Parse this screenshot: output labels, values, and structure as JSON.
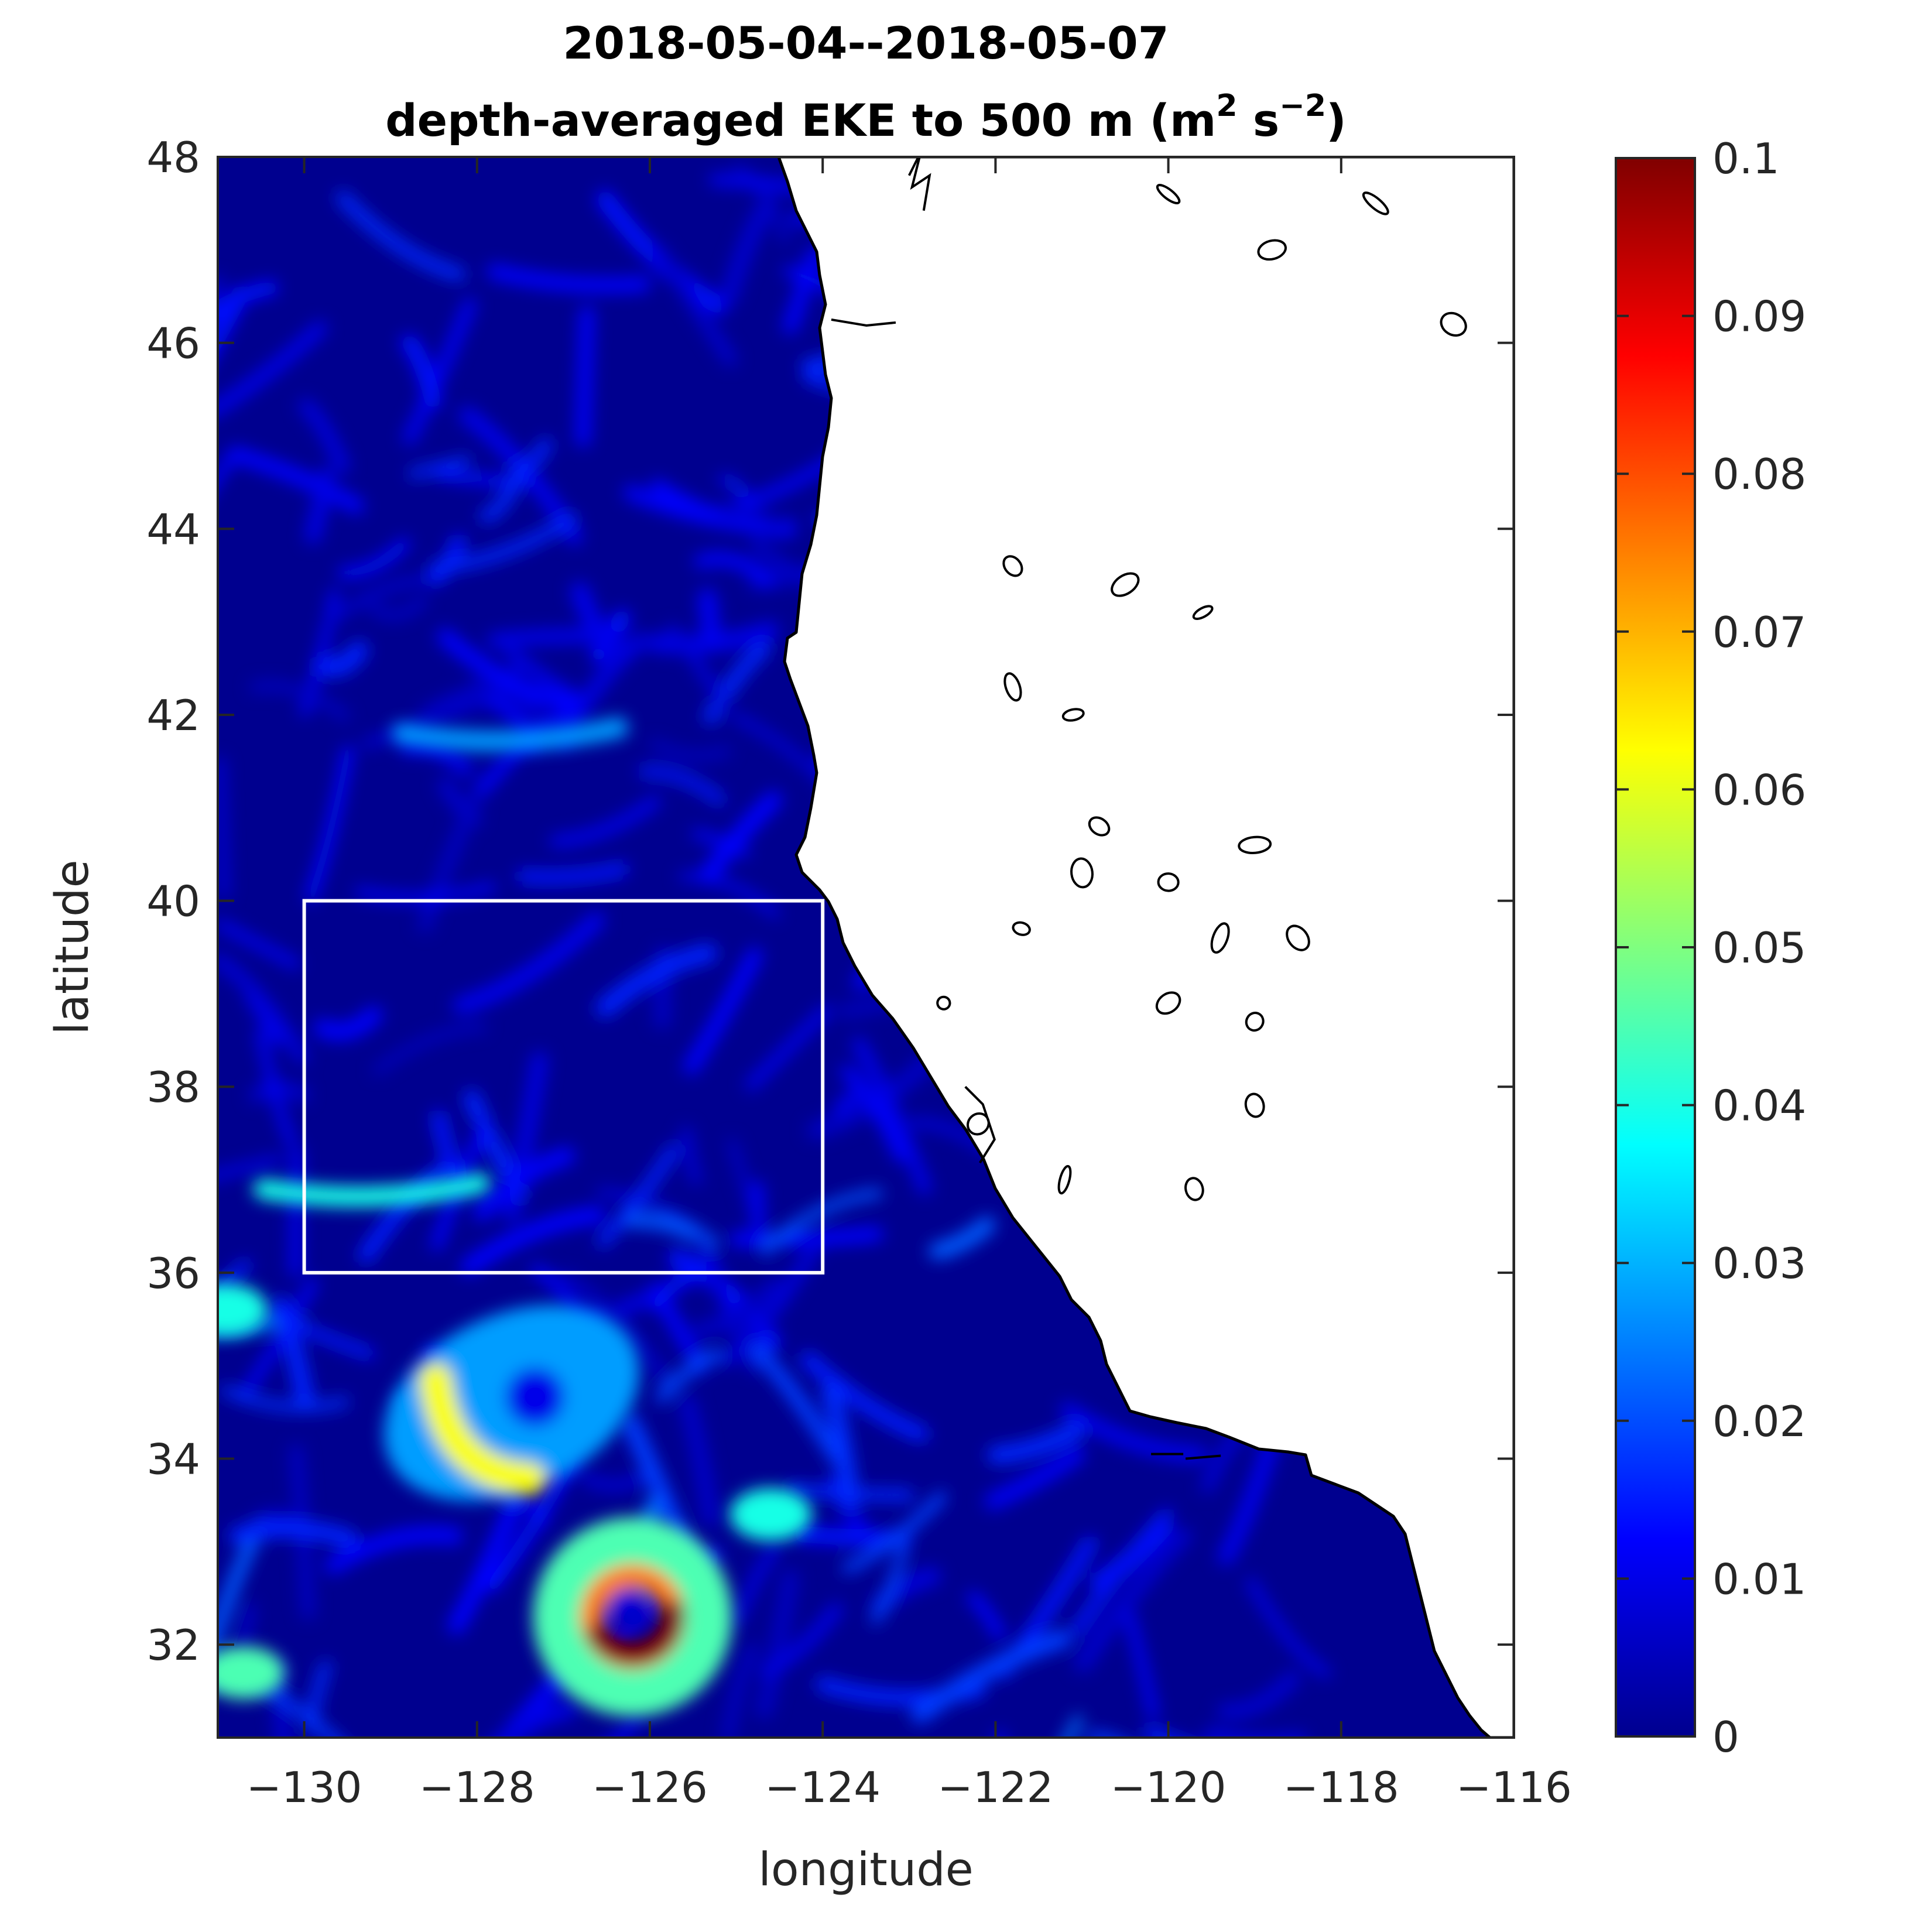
{
  "figure": {
    "title_line1": "2018-05-04--2018-05-07",
    "title_line2_prefix": "depth-averaged EKE to 500 m (m",
    "title_line2_sup1": "2",
    "title_line2_mid": " s",
    "title_line2_sup2": "−2",
    "title_line2_suffix": ")"
  },
  "chart_data": {
    "type": "heatmap",
    "xlabel": "longitude",
    "ylabel": "latitude",
    "xlim": [
      -131,
      -116
    ],
    "ylim": [
      31,
      48
    ],
    "x_ticks": [
      -130,
      -128,
      -126,
      -124,
      -122,
      -120,
      -118,
      -116
    ],
    "y_ticks": [
      32,
      34,
      36,
      38,
      40,
      42,
      44,
      46,
      48
    ],
    "x_tick_labels": [
      "−130",
      "−128",
      "−126",
      "−124",
      "−122",
      "−120",
      "−118",
      "−116"
    ],
    "y_tick_labels": [
      "32",
      "34",
      "36",
      "38",
      "40",
      "42",
      "44",
      "46",
      "48"
    ],
    "colorbar": {
      "min": 0,
      "max": 0.1,
      "ticks": [
        0,
        0.01,
        0.02,
        0.03,
        0.04,
        0.05,
        0.06,
        0.07,
        0.08,
        0.09,
        0.1
      ],
      "tick_labels": [
        "0",
        "0.01",
        "0.02",
        "0.03",
        "0.04",
        "0.05",
        "0.06",
        "0.07",
        "0.08",
        "0.09",
        "0.1"
      ],
      "colormap": "jet"
    },
    "box": {
      "lon_min": -130,
      "lon_max": -124,
      "lat_min": 36,
      "lat_max": 40,
      "color": "#ffffff"
    },
    "background_value": 0.005,
    "features": [
      {
        "name": "eddy-ring-34.5N",
        "lon": -127.6,
        "lat": 34.6,
        "peak": 0.062,
        "kind": "crescent"
      },
      {
        "name": "eddy-ring-32.2N",
        "lon": -126.2,
        "lat": 32.3,
        "peak": 0.1,
        "kind": "ring"
      },
      {
        "name": "filament-37N",
        "lon": -130.2,
        "lat": 36.9,
        "peak": 0.04,
        "kind": "filament"
      },
      {
        "name": "filament-42N",
        "lon": -128.6,
        "lat": 41.8,
        "peak": 0.028,
        "kind": "filament"
      },
      {
        "name": "filament-33.2N",
        "lon": -124.6,
        "lat": 33.4,
        "peak": 0.04,
        "kind": "blob"
      },
      {
        "name": "edge-blob-31.5N",
        "lon": -130.7,
        "lat": 31.7,
        "peak": 0.045,
        "kind": "blob"
      },
      {
        "name": "edge-blob-35.5N",
        "lon": -130.9,
        "lat": 35.6,
        "peak": 0.04,
        "kind": "blob"
      }
    ],
    "colors": {
      "land": "#ffffff",
      "coastline": "#000000",
      "ocean_low": "#00008f"
    }
  }
}
